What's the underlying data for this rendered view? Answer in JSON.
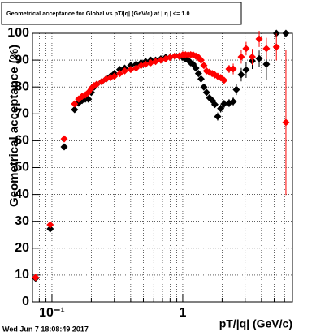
{
  "chart_data": {
    "type": "scatter",
    "title": "Geometrical acceptance for Global vs pT/|q| (GeV/c) at | η | <= 1.0",
    "x_label": "pT/|q| (GeV/c)",
    "y_label": "Geometrical acceptance (%)",
    "footer": "Wed Jun  7 18:08:49 2017",
    "x_scale": "log",
    "grid": true,
    "xlim": [
      0.071,
      6.9
    ],
    "ylim": [
      0,
      100
    ],
    "xticks": [
      {
        "value": 0.1,
        "label": "10⁻¹"
      },
      1
    ],
    "xminor_ticks": [
      0.08,
      0.09,
      0.2,
      0.3,
      0.4,
      0.5,
      0.6,
      0.7,
      0.8,
      0.9,
      2,
      3,
      4,
      5,
      6
    ],
    "yticks": [
      0,
      10,
      20,
      30,
      40,
      50,
      60,
      70,
      80,
      90,
      100
    ],
    "x": [
      0.075,
      0.097,
      0.124,
      0.149,
      0.16,
      0.17,
      0.18,
      0.19,
      0.2,
      0.21,
      0.22,
      0.24,
      0.26,
      0.28,
      0.3,
      0.33,
      0.36,
      0.4,
      0.44,
      0.48,
      0.52,
      0.57,
      0.62,
      0.68,
      0.74,
      0.8,
      0.87,
      0.94,
      1.0,
      1.05,
      1.1,
      1.15,
      1.2,
      1.26,
      1.32,
      1.38,
      1.45,
      1.52,
      1.6,
      1.68,
      1.76,
      1.85,
      1.95,
      2.07,
      2.26,
      2.43,
      2.57,
      2.8,
      3.05,
      3.4,
      3.84,
      4.36,
      5.2,
      6.15
    ],
    "series": [
      {
        "color": "#000000",
        "values": [
          8.8,
          27.2,
          57.7,
          71.6,
          74,
          75,
          75.5,
          75.5,
          78,
          80,
          81,
          82,
          83,
          84,
          85,
          86.5,
          87,
          88,
          88.5,
          89,
          89.5,
          90,
          90,
          90.5,
          91,
          91,
          91.5,
          91.5,
          91,
          90.5,
          90,
          89,
          88.5,
          87,
          85,
          83,
          80,
          78,
          76,
          75,
          73.5,
          69,
          72,
          73.7,
          74,
          74.6,
          79,
          84.6,
          86.4,
          89.7,
          90.6,
          88.5,
          100,
          100
        ],
        "errors": [
          1,
          1,
          1,
          1,
          0.5,
          0.5,
          0.5,
          0.5,
          0.5,
          0.5,
          0.5,
          0.5,
          0.5,
          0.5,
          0.5,
          0.5,
          0.5,
          0.5,
          0.5,
          0.5,
          0.5,
          0.5,
          0.5,
          0.5,
          0.5,
          0.5,
          0.5,
          0.5,
          0.5,
          0.5,
          0.5,
          0.5,
          0.5,
          0.5,
          0.5,
          0.5,
          0.5,
          0.5,
          0.5,
          0.5,
          1,
          1.5,
          1.5,
          1.5,
          1.5,
          1.5,
          2,
          2.5,
          3,
          3,
          3,
          6,
          0,
          0
        ]
      },
      {
        "color": "#ff0000",
        "values": [
          9.1,
          28.7,
          60.7,
          73.7,
          75.5,
          76.5,
          77,
          78,
          79.5,
          80.5,
          81,
          82,
          83,
          83.5,
          84,
          85,
          86,
          86.5,
          87,
          88,
          88.5,
          89,
          89.5,
          90,
          90.5,
          91,
          91.5,
          91.5,
          92,
          92,
          92,
          92,
          92,
          91.5,
          91,
          90,
          88,
          86,
          85.5,
          85,
          84.5,
          84,
          83.5,
          82.5,
          86.7,
          86.7,
          null,
          91.2,
          94.3,
          91.2,
          97.9,
          94.3,
          94.9,
          66.8
        ],
        "errors": [
          1,
          1,
          1,
          1,
          0.5,
          0.5,
          0.5,
          0.5,
          0.5,
          0.5,
          0.5,
          0.5,
          0.5,
          0.5,
          0.5,
          0.5,
          0.5,
          0.5,
          0.5,
          0.5,
          0.5,
          0.5,
          0.5,
          0.5,
          0.5,
          0.5,
          0.5,
          0.5,
          0.5,
          0.5,
          0.5,
          0.5,
          0.5,
          0.5,
          0.5,
          0.5,
          0.5,
          0.5,
          0.5,
          0.5,
          1,
          1,
          1,
          1,
          1.5,
          2,
          null,
          2.5,
          2.5,
          3,
          3,
          4,
          5,
          27
        ]
      }
    ]
  }
}
